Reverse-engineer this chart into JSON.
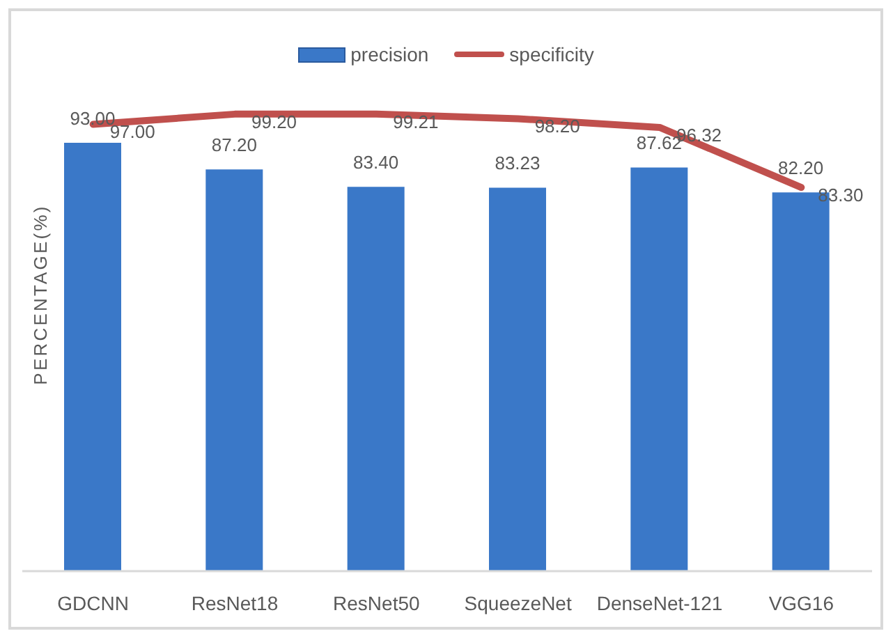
{
  "chart_data": {
    "type": "bar",
    "ylabel": "PERCENTAGE(%)",
    "categories": [
      "GDCNN",
      "ResNet18",
      "ResNet50",
      "SqueezeNet",
      "DenseNet-121",
      "VGG16"
    ],
    "series": [
      {
        "name": "precision",
        "color": "#3a78c8",
        "values": [
          93.0,
          87.2,
          83.4,
          83.23,
          87.62,
          82.2
        ],
        "value_labels": [
          "93.00",
          "87.20",
          "83.40",
          "83.23",
          "87.62",
          "82.20"
        ]
      },
      {
        "name": "specificity",
        "type": "line",
        "color": "#c0504d",
        "values": [
          97.0,
          99.2,
          99.21,
          98.2,
          96.32,
          83.3
        ],
        "value_labels": [
          "97.00",
          "99.20",
          "99.21",
          "98.20",
          "96.32",
          "83.30"
        ]
      }
    ],
    "legend": "top",
    "tick_labels": "x",
    "marker": "none"
  }
}
